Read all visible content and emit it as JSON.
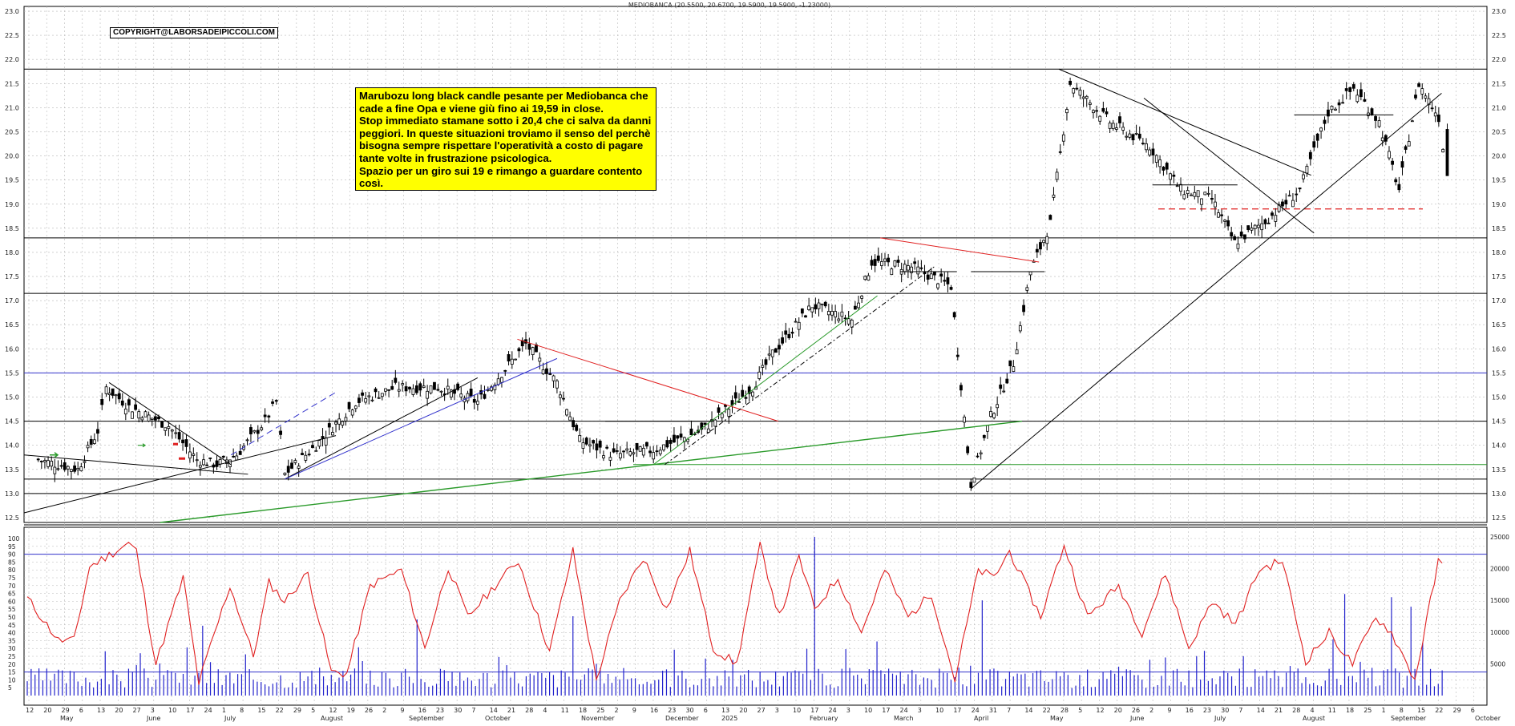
{
  "header": {
    "title": "MEDIOBANCA (20.5500, 20.6700, 19.5900, 19.5900, -1.23000)",
    "copyright": "COPYRIGHT@LABORSADEIPICCOLI.COM"
  },
  "annotation": {
    "text": "Marubozu long black candle pesante per Mediobanca che cade a fine Opa e viene giù fino ai 19,59 in close.\nStop immediato stamane sotto i 20,4 che ci salva da danni peggiori. In queste situazioni troviamo il senso del perchè bisogna sempre rispettare l'operatività a costo di pagare tante volte in frustrazione psicologica.\nSpazio per un giro sui 19 e rimango a guardare contento così."
  },
  "colors": {
    "candle": "#000000",
    "grid": "#b8b8b8",
    "blue_line": "#3333cc",
    "green_line": "#2a9a2a",
    "red_line": "#e02020",
    "oscillator": "#e02020",
    "volume": "#2222cc"
  },
  "chart_data": [
    {
      "type": "candlestick",
      "title": "MEDIOBANCA (20.5500, 20.6700, 19.5900, 19.5900, -1.23000)",
      "ylim": [
        12.4,
        23.1
      ],
      "yticks": [
        "23.0",
        "22.5",
        "22.0",
        "21.5",
        "21.0",
        "20.5",
        "20.0",
        "19.5",
        "19.0",
        "18.5",
        "18.0",
        "17.5",
        "17.0",
        "16.5",
        "16.0",
        "15.5",
        "15.0",
        "14.5",
        "14.0",
        "13.5",
        "13.0",
        "12.5"
      ],
      "x_day_labels": [
        "12",
        "20",
        "29",
        "6",
        "13",
        "20",
        "27",
        "3",
        "10",
        "17",
        "24",
        "1",
        "8",
        "15",
        "22",
        "29",
        "5",
        "12",
        "19",
        "26",
        "2",
        "9",
        "16",
        "23",
        "30",
        "7",
        "14",
        "21",
        "28",
        "4",
        "11",
        "18",
        "25",
        "2",
        "9",
        "16",
        "23",
        "30",
        "6",
        "13",
        "20",
        "27",
        "3",
        "10",
        "17",
        "24",
        "3",
        "10",
        "17",
        "24",
        "3",
        "10",
        "17",
        "24",
        "31",
        "7",
        "14",
        "22",
        "28",
        "5",
        "12",
        "20",
        "26",
        "2",
        "9",
        "16",
        "23",
        "30",
        "7",
        "14",
        "21",
        "28",
        "4",
        "11",
        "18",
        "25",
        "1",
        "8",
        "15",
        "22",
        "29",
        "6"
      ],
      "x_month_labels": [
        "May",
        "June",
        "July",
        "August",
        "September",
        "October",
        "November",
        "December",
        "2025",
        "February",
        "March",
        "April",
        "May",
        "June",
        "July",
        "August",
        "September",
        "October"
      ],
      "close_series_keypoints": [
        [
          "2024-05-13",
          13.7
        ],
        [
          "2024-05-20",
          13.6
        ],
        [
          "2024-05-27",
          13.5
        ],
        [
          "2024-06-03",
          14.3
        ],
        [
          "2024-06-06",
          15.2
        ],
        [
          "2024-06-14",
          14.8
        ],
        [
          "2024-06-28",
          14.4
        ],
        [
          "2024-07-08",
          13.7
        ],
        [
          "2024-07-15",
          13.6
        ],
        [
          "2024-07-22",
          13.8
        ],
        [
          "2024-08-01",
          14.5
        ],
        [
          "2024-08-05",
          14.9
        ],
        [
          "2024-08-08",
          13.4
        ],
        [
          "2024-08-19",
          14.0
        ],
        [
          "2024-09-02",
          14.9
        ],
        [
          "2024-09-16",
          15.2
        ],
        [
          "2024-10-01",
          15.2
        ],
        [
          "2024-10-15",
          14.9
        ],
        [
          "2024-11-01",
          16.1
        ],
        [
          "2024-11-12",
          15.3
        ],
        [
          "2024-11-20",
          14.1
        ],
        [
          "2024-12-02",
          13.8
        ],
        [
          "2024-12-16",
          13.9
        ],
        [
          "2025-01-02",
          14.3
        ],
        [
          "2025-01-20",
          15.2
        ],
        [
          "2025-01-27",
          15.9
        ],
        [
          "2025-02-10",
          16.9
        ],
        [
          "2025-02-24",
          16.6
        ],
        [
          "2025-03-03",
          17.8
        ],
        [
          "2025-03-17",
          17.7
        ],
        [
          "2025-03-31",
          17.3
        ],
        [
          "2025-04-07",
          13.2
        ],
        [
          "2025-04-14",
          14.6
        ],
        [
          "2025-04-22",
          15.7
        ],
        [
          "2025-04-28",
          17.6
        ],
        [
          "2025-05-05",
          18.6
        ],
        [
          "2025-05-12",
          21.5
        ],
        [
          "2025-05-26",
          20.7
        ],
        [
          "2025-06-09",
          20.2
        ],
        [
          "2025-06-20",
          19.3
        ],
        [
          "2025-07-01",
          19.1
        ],
        [
          "2025-07-09",
          18.2
        ],
        [
          "2025-07-21",
          18.7
        ],
        [
          "2025-08-01",
          19.3
        ],
        [
          "2025-08-11",
          20.9
        ],
        [
          "2025-08-20",
          21.4
        ],
        [
          "2025-08-29",
          20.7
        ],
        [
          "2025-09-05",
          19.3
        ],
        [
          "2025-09-12",
          21.5
        ],
        [
          "2025-09-19",
          20.8
        ],
        [
          "2025-09-22",
          19.59
        ]
      ],
      "horizontal_levels": [
        {
          "value": 21.8,
          "color": "black"
        },
        {
          "value": 18.3,
          "color": "black"
        },
        {
          "value": 17.15,
          "color": "black"
        },
        {
          "value": 15.5,
          "color": "blue"
        },
        {
          "value": 14.5,
          "color": "black"
        },
        {
          "value": 13.6,
          "color": "green"
        },
        {
          "value": 13.3,
          "color": "black"
        },
        {
          "value": 13.0,
          "color": "black"
        },
        {
          "value": 18.9,
          "color": "red-dashed"
        }
      ],
      "grid": true
    },
    {
      "type": "line+bar",
      "ylim_left": [
        0,
        100
      ],
      "yticks_left": [
        "100",
        "95",
        "90",
        "85",
        "80",
        "75",
        "70",
        "65",
        "60",
        "55",
        "50",
        "45",
        "40",
        "35",
        "30",
        "25",
        "20",
        "15",
        "10",
        "5"
      ],
      "yticks_right": [
        "25000",
        "20000",
        "15000",
        "10000",
        "5000"
      ],
      "levels": [
        90,
        15
      ],
      "oscillator_keypoints": [
        [
          0,
          62
        ],
        [
          8,
          35
        ],
        [
          12,
          35
        ],
        [
          16,
          82
        ],
        [
          26,
          97
        ],
        [
          28,
          92
        ],
        [
          33,
          20
        ],
        [
          40,
          75
        ],
        [
          44,
          8
        ],
        [
          52,
          70
        ],
        [
          58,
          25
        ],
        [
          62,
          72
        ],
        [
          66,
          60
        ],
        [
          72,
          78
        ],
        [
          78,
          15
        ],
        [
          82,
          14
        ],
        [
          88,
          70
        ],
        [
          96,
          80
        ],
        [
          102,
          30
        ],
        [
          108,
          82
        ],
        [
          113,
          50
        ],
        [
          120,
          70
        ],
        [
          126,
          86
        ],
        [
          134,
          28
        ],
        [
          140,
          92
        ],
        [
          146,
          10
        ],
        [
          152,
          60
        ],
        [
          158,
          88
        ],
        [
          164,
          55
        ],
        [
          170,
          92
        ],
        [
          176,
          30
        ],
        [
          182,
          20
        ],
        [
          188,
          95
        ],
        [
          193,
          50
        ],
        [
          198,
          88
        ],
        [
          202,
          55
        ],
        [
          208,
          75
        ],
        [
          214,
          40
        ],
        [
          220,
          80
        ],
        [
          226,
          50
        ],
        [
          232,
          65
        ],
        [
          238,
          10
        ],
        [
          244,
          80
        ],
        [
          248,
          75
        ],
        [
          252,
          92
        ],
        [
          260,
          50
        ],
        [
          266,
          96
        ],
        [
          272,
          50
        ],
        [
          280,
          70
        ],
        [
          286,
          40
        ],
        [
          292,
          78
        ],
        [
          298,
          30
        ],
        [
          304,
          60
        ],
        [
          310,
          45
        ],
        [
          316,
          80
        ],
        [
          322,
          86
        ],
        [
          328,
          22
        ],
        [
          334,
          40
        ],
        [
          340,
          20
        ],
        [
          346,
          50
        ],
        [
          350,
          40
        ],
        [
          356,
          10
        ],
        [
          362,
          85
        ],
        [
          364,
          80
        ]
      ],
      "volume_series": "bars, mostly below 5000 with spikes near 12000-25000"
    }
  ]
}
